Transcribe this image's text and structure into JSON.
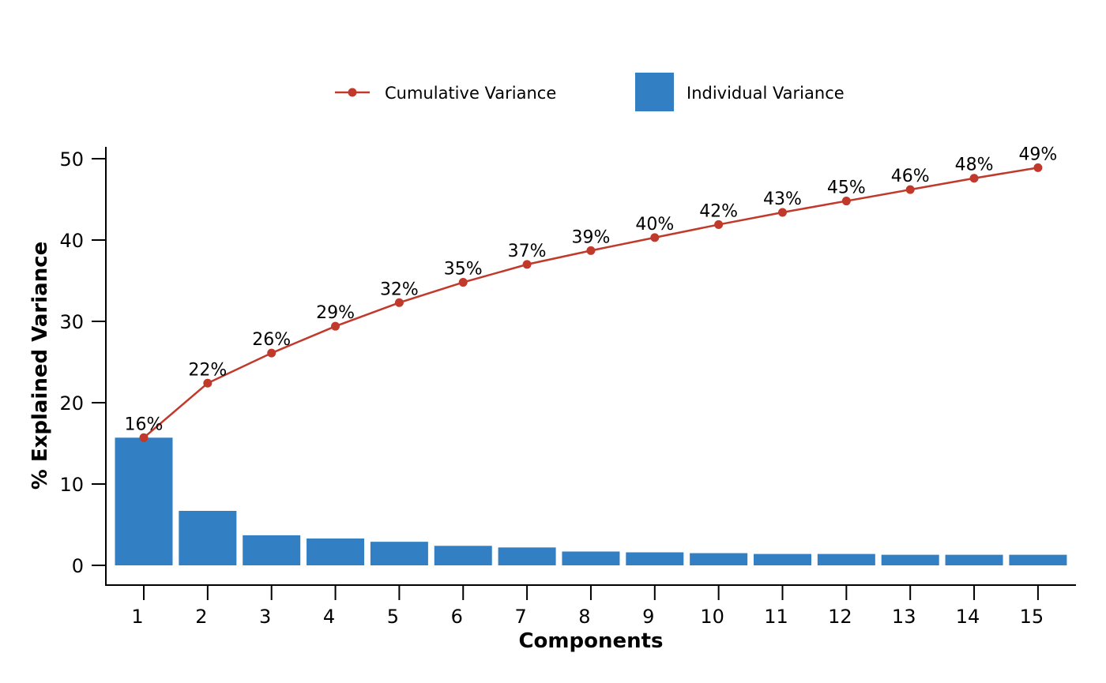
{
  "chart_data": {
    "type": "bar",
    "categories": [
      "1",
      "2",
      "3",
      "4",
      "5",
      "6",
      "7",
      "8",
      "9",
      "10",
      "11",
      "12",
      "13",
      "14",
      "15"
    ],
    "series": [
      {
        "name": "Individual Variance",
        "type": "bar",
        "color": "#3280c3",
        "values": [
          15.7,
          6.7,
          3.7,
          3.3,
          2.9,
          2.4,
          2.2,
          1.7,
          1.6,
          1.5,
          1.4,
          1.4,
          1.3,
          1.3,
          1.3
        ]
      },
      {
        "name": "Cumulative Variance",
        "type": "line",
        "color": "#c0392b",
        "values": [
          15.7,
          22.4,
          26.1,
          29.4,
          32.3,
          34.8,
          37.0,
          38.7,
          40.3,
          41.9,
          43.4,
          44.8,
          46.2,
          47.6,
          48.9
        ],
        "labels": [
          "16%",
          "22%",
          "26%",
          "29%",
          "32%",
          "35%",
          "37%",
          "39%",
          "40%",
          "42%",
          "43%",
          "45%",
          "46%",
          "48%",
          "49%"
        ]
      }
    ],
    "xlabel": "Components",
    "ylabel": "% Explained Variance",
    "ylim": [
      0,
      50
    ],
    "yticks": [
      0,
      10,
      20,
      30,
      40,
      50
    ],
    "grid": false,
    "legend_position": "top-center"
  }
}
